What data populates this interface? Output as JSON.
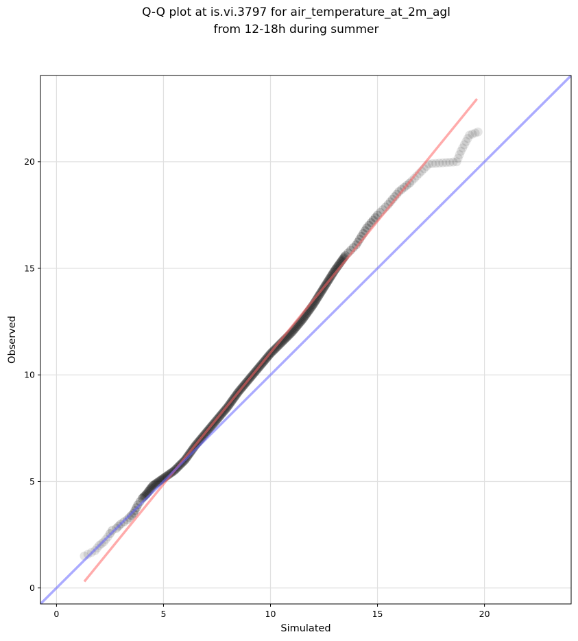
{
  "chart_data": {
    "type": "scatter",
    "title": "Q-Q plot at is.vi.3797 for air_temperature_at_2m_agl",
    "subtitle": "from 12-18h during summer",
    "xlabel": "Simulated",
    "ylabel": "Observed",
    "xlim": [
      -0.75,
      24.05
    ],
    "ylim": [
      -0.75,
      24.05
    ],
    "xticks": [
      0,
      5,
      10,
      15,
      20
    ],
    "yticks": [
      0,
      5,
      10,
      15,
      20
    ],
    "grid": true,
    "legend": "none",
    "colors": {
      "points": "#000000",
      "fit_line": "#ff6666",
      "identity_line": "#6666ff",
      "grid": "#e0e0e0"
    },
    "lines": [
      {
        "role": "fit",
        "x": [
          1.3,
          19.65
        ],
        "y": [
          0.3,
          22.95
        ]
      },
      {
        "role": "identity",
        "x": [
          -0.75,
          24.05
        ],
        "y": [
          -0.75,
          24.05
        ]
      }
    ],
    "quantiles": {
      "x": [
        1.3,
        1.8,
        2.0,
        2.2,
        2.4,
        2.6,
        2.8,
        3.0,
        3.3,
        3.6,
        3.8,
        4.0,
        4.2,
        4.5,
        5.0,
        5.5,
        6.0,
        6.5,
        7.0,
        7.5,
        8.0,
        8.5,
        9.0,
        9.5,
        10.0,
        10.5,
        11.0,
        11.5,
        12.0,
        12.5,
        13.0,
        13.5,
        14.0,
        14.5,
        15.0,
        15.5,
        16.0,
        16.5,
        17.4,
        18.7,
        18.9,
        19.3,
        19.7
      ],
      "y": [
        1.5,
        1.75,
        2.0,
        2.15,
        2.4,
        2.7,
        2.8,
        3.0,
        3.2,
        3.5,
        3.9,
        4.2,
        4.4,
        4.8,
        5.15,
        5.5,
        6.0,
        6.7,
        7.3,
        7.9,
        8.5,
        9.2,
        9.8,
        10.4,
        11.0,
        11.5,
        12.0,
        12.6,
        13.3,
        14.1,
        14.9,
        15.6,
        16.1,
        16.9,
        17.5,
        18.0,
        18.6,
        19.0,
        19.9,
        20.0,
        20.5,
        21.25,
        21.4
      ]
    }
  }
}
